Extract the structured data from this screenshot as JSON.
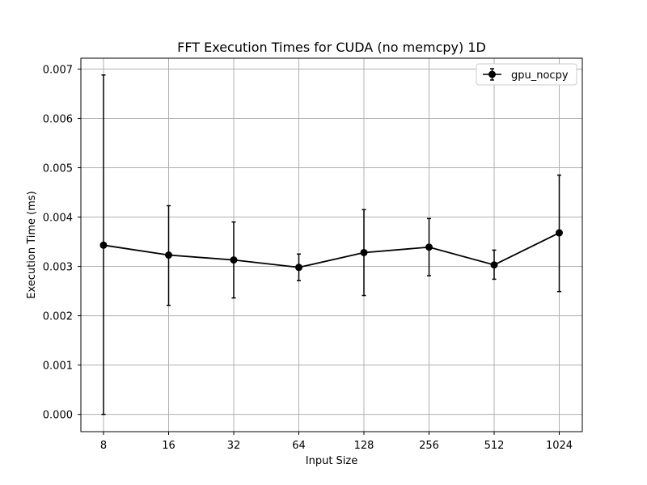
{
  "chart_data": {
    "type": "line",
    "title": "FFT Execution Times for CUDA (no memcpy) 1D",
    "xlabel": "Input Size",
    "ylabel": "Execution Time (ms)",
    "categories": [
      "8",
      "16",
      "32",
      "64",
      "128",
      "256",
      "512",
      "1024"
    ],
    "ylim": [
      -0.00035,
      0.00722
    ],
    "yticks": [
      0.0,
      0.001,
      0.002,
      0.003,
      0.004,
      0.005,
      0.006,
      0.007
    ],
    "ytick_labels": [
      "0.000",
      "0.001",
      "0.002",
      "0.003",
      "0.004",
      "0.005",
      "0.006",
      "0.007"
    ],
    "grid": true,
    "legend_position": "top-right",
    "series": [
      {
        "name": "gpu_nocpy",
        "color": "#000000",
        "marker": "circle",
        "values": [
          0.00343,
          0.00323,
          0.00313,
          0.00298,
          0.00328,
          0.00339,
          0.00303,
          0.00368
        ],
        "error_low": [
          0.0,
          0.00221,
          0.00236,
          0.00271,
          0.00241,
          0.00281,
          0.00274,
          0.00249
        ],
        "error_high": [
          0.00688,
          0.00423,
          0.0039,
          0.00325,
          0.00415,
          0.00397,
          0.00333,
          0.00485
        ]
      }
    ]
  }
}
